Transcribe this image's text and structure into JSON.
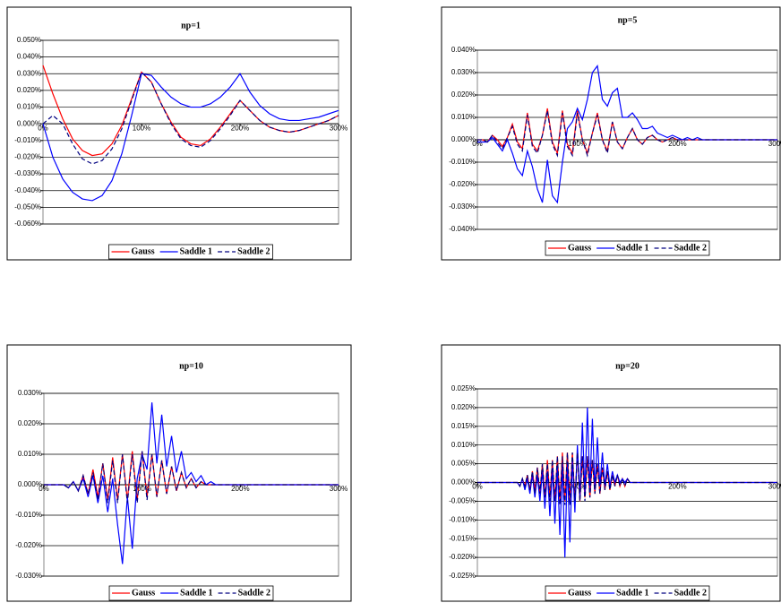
{
  "chart_data": [
    {
      "type": "line",
      "title": "np=1",
      "grid": true,
      "x": [
        0,
        10,
        20,
        30,
        40,
        50,
        60,
        70,
        80,
        90,
        100,
        110,
        120,
        130,
        140,
        150,
        160,
        170,
        180,
        190,
        200,
        210,
        220,
        230,
        240,
        250,
        260,
        270,
        280,
        290,
        300
      ],
      "xlim": [
        0,
        300
      ],
      "xticks": [
        {
          "value": 0,
          "label": "0%"
        },
        {
          "value": 100,
          "label": "100%"
        },
        {
          "value": 200,
          "label": "200%"
        },
        {
          "value": 300,
          "label": "300%"
        }
      ],
      "ylim": [
        -0.06,
        0.05
      ],
      "yticks": [
        {
          "value": -0.06,
          "label": "-0.060%"
        },
        {
          "value": -0.05,
          "label": "-0.050%"
        },
        {
          "value": -0.04,
          "label": "-0.040%"
        },
        {
          "value": -0.03,
          "label": "-0.030%"
        },
        {
          "value": -0.02,
          "label": "-0.020%"
        },
        {
          "value": -0.01,
          "label": "-0.010%"
        },
        {
          "value": 0,
          "label": "0.000%"
        },
        {
          "value": 0.01,
          "label": "0.010%"
        },
        {
          "value": 0.02,
          "label": "0.020%"
        },
        {
          "value": 0.03,
          "label": "0.030%"
        },
        {
          "value": 0.04,
          "label": "0.040%"
        },
        {
          "value": 0.05,
          "label": "0.050%"
        }
      ],
      "series": [
        {
          "name": "Gauss",
          "color": "#ff0000",
          "dashed": false,
          "values": [
            0.035,
            0.018,
            0.003,
            -0.009,
            -0.016,
            -0.019,
            -0.018,
            -0.012,
            -0.001,
            0.015,
            0.031,
            0.025,
            0.012,
            0.001,
            -0.008,
            -0.012,
            -0.013,
            -0.009,
            -0.002,
            0.006,
            0.014,
            0.008,
            0.002,
            -0.002,
            -0.004,
            -0.005,
            -0.004,
            -0.002,
            0.0,
            0.002,
            0.005
          ]
        },
        {
          "name": "Saddle 1",
          "color": "#0000ff",
          "dashed": false,
          "values": [
            0.0,
            -0.02,
            -0.033,
            -0.041,
            -0.045,
            -0.046,
            -0.043,
            -0.034,
            -0.018,
            0.005,
            0.03,
            0.029,
            0.022,
            0.016,
            0.012,
            0.01,
            0.01,
            0.012,
            0.016,
            0.022,
            0.03,
            0.019,
            0.011,
            0.006,
            0.003,
            0.002,
            0.002,
            0.003,
            0.004,
            0.006,
            0.008
          ]
        },
        {
          "name": "Saddle 2",
          "color": "#000080",
          "dashed": true,
          "values": [
            0.0,
            0.005,
            0.0,
            -0.012,
            -0.021,
            -0.024,
            -0.022,
            -0.015,
            -0.003,
            0.014,
            0.031,
            0.025,
            0.012,
            0.0,
            -0.009,
            -0.013,
            -0.014,
            -0.01,
            -0.003,
            0.005,
            0.014,
            0.008,
            0.002,
            -0.002,
            -0.004,
            -0.005,
            -0.004,
            -0.002,
            0.0,
            0.002,
            0.005
          ]
        }
      ]
    },
    {
      "type": "line",
      "title": "np=5",
      "grid": true,
      "x": [
        0,
        5,
        10,
        15,
        20,
        25,
        30,
        35,
        40,
        45,
        50,
        55,
        60,
        65,
        70,
        75,
        80,
        85,
        90,
        95,
        100,
        105,
        110,
        115,
        120,
        125,
        130,
        135,
        140,
        145,
        150,
        155,
        160,
        165,
        170,
        175,
        180,
        185,
        190,
        195,
        200,
        205,
        210,
        215,
        220,
        225,
        230,
        235,
        240,
        270,
        300
      ],
      "xlim": [
        0,
        300
      ],
      "xticks": [
        {
          "value": 0,
          "label": "0%"
        },
        {
          "value": 100,
          "label": "100%"
        },
        {
          "value": 200,
          "label": "200%"
        },
        {
          "value": 300,
          "label": "300%"
        }
      ],
      "ylim": [
        -0.04,
        0.04
      ],
      "yticks": [
        {
          "value": -0.04,
          "label": "-0.040%"
        },
        {
          "value": -0.03,
          "label": "-0.030%"
        },
        {
          "value": -0.02,
          "label": "-0.020%"
        },
        {
          "value": -0.01,
          "label": "-0.010%"
        },
        {
          "value": 0,
          "label": "0.000%"
        },
        {
          "value": 0.01,
          "label": "0.010%"
        },
        {
          "value": 0.02,
          "label": "0.020%"
        },
        {
          "value": 0.03,
          "label": "0.030%"
        },
        {
          "value": 0.04,
          "label": "0.040%"
        }
      ],
      "series": [
        {
          "name": "Gauss",
          "color": "#ff0000",
          "dashed": false,
          "values": [
            0,
            0,
            -0.001,
            0.002,
            0,
            -0.003,
            0.001,
            0.007,
            -0.001,
            -0.004,
            0.012,
            -0.002,
            -0.005,
            0.002,
            0.014,
            -0.001,
            -0.006,
            0.013,
            -0.002,
            -0.006,
            0.013,
            0,
            -0.006,
            0.003,
            0.012,
            0,
            -0.005,
            0.008,
            -0.001,
            -0.004,
            0.001,
            0.005,
            0,
            -0.002,
            0.001,
            0.002,
            0,
            -0.001,
            0,
            0.001,
            0,
            0,
            0,
            0,
            0,
            0,
            0,
            0,
            0,
            0,
            0
          ]
        },
        {
          "name": "Saddle 1",
          "color": "#0000ff",
          "dashed": false,
          "values": [
            -0.001,
            -0.001,
            -0.001,
            0.001,
            -0.002,
            -0.005,
            0,
            -0.006,
            -0.013,
            -0.016,
            -0.005,
            -0.012,
            -0.022,
            -0.028,
            -0.009,
            -0.025,
            -0.028,
            -0.01,
            0.005,
            0.008,
            0.014,
            0.009,
            0.018,
            0.03,
            0.033,
            0.018,
            0.015,
            0.021,
            0.023,
            0.01,
            0.01,
            0.012,
            0.009,
            0.005,
            0.005,
            0.006,
            0.003,
            0.002,
            0.001,
            0.002,
            0.001,
            0,
            0.001,
            0,
            0.001,
            0,
            0,
            0,
            0,
            0,
            0
          ]
        },
        {
          "name": "Saddle 2",
          "color": "#000080",
          "dashed": true,
          "values": [
            0,
            0,
            -0.001,
            0.002,
            -0.001,
            -0.004,
            0.001,
            0.006,
            -0.002,
            -0.005,
            0.011,
            -0.003,
            -0.006,
            0.002,
            0.013,
            -0.002,
            -0.007,
            0.012,
            -0.003,
            -0.007,
            0.012,
            0,
            -0.007,
            0.003,
            0.011,
            0,
            -0.006,
            0.008,
            -0.001,
            -0.004,
            0.001,
            0.005,
            0,
            -0.002,
            0.001,
            0.002,
            0,
            -0.001,
            0,
            0.001,
            0,
            0,
            0,
            0,
            0,
            0,
            0,
            0,
            0,
            0,
            0
          ]
        }
      ]
    },
    {
      "type": "line",
      "title": "np=10",
      "grid": true,
      "x": [
        0,
        5,
        10,
        15,
        20,
        25,
        30,
        35,
        40,
        45,
        50,
        55,
        60,
        65,
        70,
        75,
        80,
        85,
        90,
        95,
        100,
        105,
        110,
        115,
        120,
        125,
        130,
        135,
        140,
        145,
        150,
        155,
        160,
        165,
        170,
        175,
        180,
        185,
        190,
        195,
        200,
        250,
        300
      ],
      "xlim": [
        0,
        300
      ],
      "xticks": [
        {
          "value": 0,
          "label": "0%"
        },
        {
          "value": 100,
          "label": "100%"
        },
        {
          "value": 200,
          "label": "200%"
        },
        {
          "value": 300,
          "label": "300%"
        }
      ],
      "ylim": [
        -0.03,
        0.03
      ],
      "yticks": [
        {
          "value": -0.03,
          "label": "-0.030%"
        },
        {
          "value": -0.02,
          "label": "-0.020%"
        },
        {
          "value": -0.01,
          "label": "-0.010%"
        },
        {
          "value": 0,
          "label": "0.000%"
        },
        {
          "value": 0.01,
          "label": "0.010%"
        },
        {
          "value": 0.02,
          "label": "0.020%"
        },
        {
          "value": 0.03,
          "label": "0.030%"
        }
      ],
      "series": [
        {
          "name": "Gauss",
          "color": "#ff0000",
          "dashed": false,
          "values": [
            0,
            0,
            0,
            0,
            0,
            -0.001,
            0.001,
            -0.002,
            0.003,
            -0.003,
            0.005,
            -0.004,
            0.007,
            -0.005,
            0.009,
            -0.005,
            0.01,
            -0.005,
            0.011,
            -0.005,
            0.011,
            -0.004,
            0.01,
            -0.004,
            0.008,
            -0.003,
            0.006,
            -0.002,
            0.004,
            -0.001,
            0.002,
            -0.001,
            0.001,
            0,
            0,
            0,
            0,
            0,
            0,
            0,
            0,
            0,
            0
          ]
        },
        {
          "name": "Saddle 1",
          "color": "#0000ff",
          "dashed": false,
          "values": [
            0,
            0,
            0,
            0,
            0,
            -0.001,
            0.001,
            -0.002,
            0.002,
            -0.004,
            0.003,
            -0.006,
            0.003,
            -0.009,
            0.002,
            -0.013,
            -0.026,
            -0.004,
            -0.021,
            0.002,
            0.01,
            0.005,
            0.027,
            0.007,
            0.023,
            0.006,
            0.016,
            0.004,
            0.011,
            0.002,
            0.004,
            0.001,
            0.003,
            0,
            0.001,
            0,
            0,
            0,
            0,
            0,
            0,
            0,
            0
          ]
        },
        {
          "name": "Saddle 2",
          "color": "#000080",
          "dashed": true,
          "values": [
            0,
            0,
            0,
            0,
            0,
            -0.001,
            0.001,
            -0.002,
            0.003,
            -0.003,
            0.004,
            -0.005,
            0.007,
            -0.006,
            0.008,
            -0.006,
            0.01,
            -0.006,
            0.01,
            -0.006,
            0.011,
            -0.005,
            0.01,
            -0.004,
            0.008,
            -0.003,
            0.006,
            -0.002,
            0.004,
            -0.001,
            0.002,
            -0.001,
            0.001,
            0,
            0,
            0,
            0,
            0,
            0,
            0,
            0,
            0,
            0
          ]
        }
      ]
    },
    {
      "type": "line",
      "title": "np=20",
      "grid": true,
      "x": [
        0,
        20,
        40,
        42.5,
        45,
        47.5,
        50,
        52.5,
        55,
        57.5,
        60,
        62.5,
        65,
        67.5,
        70,
        72.5,
        75,
        77.5,
        80,
        82.5,
        85,
        87.5,
        90,
        92.5,
        95,
        97.5,
        100,
        102.5,
        105,
        107.5,
        110,
        112.5,
        115,
        117.5,
        120,
        122.5,
        125,
        127.5,
        130,
        132.5,
        135,
        137.5,
        140,
        142.5,
        145,
        147.5,
        150,
        152.5,
        155,
        157.5,
        160,
        180,
        200,
        250,
        300
      ],
      "xlim": [
        0,
        300
      ],
      "xticks": [
        {
          "value": 0,
          "label": "0%"
        },
        {
          "value": 100,
          "label": "100%"
        },
        {
          "value": 200,
          "label": "200%"
        },
        {
          "value": 300,
          "label": "300%"
        }
      ],
      "ylim": [
        -0.025,
        0.025
      ],
      "yticks": [
        {
          "value": -0.025,
          "label": "-0.025%"
        },
        {
          "value": -0.02,
          "label": "-0.020%"
        },
        {
          "value": -0.015,
          "label": "-0.015%"
        },
        {
          "value": -0.01,
          "label": "-0.010%"
        },
        {
          "value": -0.005,
          "label": "-0.005%"
        },
        {
          "value": 0,
          "label": "0.000%"
        },
        {
          "value": 0.005,
          "label": "0.005%"
        },
        {
          "value": 0.01,
          "label": "0.010%"
        },
        {
          "value": 0.015,
          "label": "0.015%"
        },
        {
          "value": 0.02,
          "label": "0.020%"
        },
        {
          "value": 0.025,
          "label": "0.025%"
        }
      ],
      "series": [
        {
          "name": "Gauss",
          "color": "#ff0000",
          "dashed": false,
          "values": [
            0,
            0,
            0,
            -0.001,
            0.001,
            -0.001,
            0.002,
            -0.002,
            0.003,
            -0.002,
            0.004,
            -0.003,
            0.005,
            -0.004,
            0.006,
            -0.004,
            0.006,
            -0.005,
            0.007,
            -0.005,
            0.008,
            -0.005,
            0.008,
            -0.005,
            0.008,
            -0.005,
            0.008,
            -0.005,
            0.007,
            -0.004,
            0.007,
            -0.004,
            0.006,
            -0.003,
            0.005,
            -0.003,
            0.004,
            -0.002,
            0.003,
            -0.002,
            0.002,
            -0.001,
            0.002,
            -0.001,
            0.001,
            -0.001,
            0.001,
            0,
            0,
            0,
            0,
            0,
            0,
            0,
            0
          ]
        },
        {
          "name": "Saddle 1",
          "color": "#0000ff",
          "dashed": false,
          "values": [
            0,
            0,
            0,
            -0.001,
            0.001,
            -0.002,
            0.001,
            -0.003,
            0.002,
            -0.004,
            0.002,
            -0.005,
            0.003,
            -0.007,
            0.003,
            -0.009,
            0.004,
            -0.011,
            0.004,
            -0.014,
            0.005,
            -0.02,
            0.005,
            -0.016,
            0.006,
            -0.008,
            0.01,
            -0.004,
            0.016,
            -0.003,
            0.02,
            -0.002,
            0.017,
            -0.002,
            0.012,
            -0.001,
            0.008,
            -0.001,
            0.005,
            -0.001,
            0.003,
            0,
            0.002,
            0,
            0.001,
            0,
            0.001,
            0,
            0,
            0,
            0,
            0,
            0,
            0,
            0
          ]
        },
        {
          "name": "Saddle 2",
          "color": "#000080",
          "dashed": true,
          "values": [
            0,
            0,
            0,
            -0.001,
            0.001,
            -0.001,
            0.002,
            -0.002,
            0.003,
            -0.003,
            0.004,
            -0.003,
            0.005,
            -0.004,
            0.005,
            -0.005,
            0.006,
            -0.005,
            0.007,
            -0.006,
            0.007,
            -0.006,
            0.008,
            -0.006,
            0.008,
            -0.005,
            0.008,
            -0.005,
            0.007,
            -0.005,
            0.007,
            -0.004,
            0.006,
            -0.003,
            0.005,
            -0.003,
            0.004,
            -0.002,
            0.003,
            -0.002,
            0.002,
            -0.001,
            0.002,
            -0.001,
            0.001,
            -0.001,
            0.001,
            0,
            0,
            0,
            0,
            0,
            0,
            0,
            0
          ]
        }
      ]
    }
  ]
}
